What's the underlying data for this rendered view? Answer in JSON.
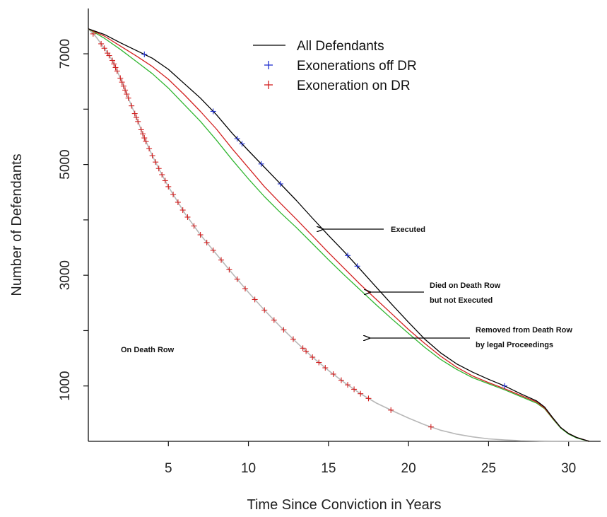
{
  "chart_data": {
    "type": "line",
    "xlabel": "Time Since Conviction in Years",
    "ylabel": "Number of Defendants",
    "xlim": [
      0,
      32
    ],
    "ylim": [
      0,
      7550
    ],
    "x_ticks": [
      5,
      10,
      15,
      20,
      25,
      30
    ],
    "x_tick_labels": [
      "5",
      "10",
      "15",
      "20",
      "25",
      "30"
    ],
    "y_ticks_labeled": [
      1000,
      3000,
      5000,
      7000
    ],
    "y_tick_labels": [
      "1000",
      "3000",
      "5000",
      "7000"
    ],
    "y_ticks_all": [
      1000,
      2000,
      3000,
      4000,
      5000,
      6000,
      7000
    ],
    "grid": false,
    "legend_position": "top-center",
    "legend": [
      {
        "label": "All Defendants",
        "symbol": "line",
        "color": "#000000"
      },
      {
        "label": "Exonerations off DR",
        "symbol": "plus",
        "color": "#1f2fd0"
      },
      {
        "label": "Exoneration on DR",
        "symbol": "plus",
        "color": "#d22020"
      }
    ],
    "series": [
      {
        "name": "Executed",
        "color": "#000000",
        "x": [
          0,
          1,
          2,
          3,
          4,
          5,
          6,
          7,
          8,
          9,
          10,
          11,
          12,
          13,
          14,
          15,
          16,
          17,
          18,
          19,
          20,
          21,
          22,
          23,
          24,
          25,
          26,
          27,
          28,
          28.5,
          29,
          29.5,
          30,
          30.5,
          31,
          31.3
        ],
        "y": [
          7450,
          7350,
          7200,
          7060,
          6920,
          6720,
          6460,
          6200,
          5900,
          5560,
          5250,
          4950,
          4650,
          4350,
          4030,
          3720,
          3420,
          3100,
          2780,
          2460,
          2150,
          1850,
          1600,
          1400,
          1250,
          1120,
          1000,
          860,
          730,
          620,
          430,
          250,
          140,
          70,
          25,
          0
        ]
      },
      {
        "name": "Died on Death Row but not Executed",
        "color": "#d22020",
        "x": [
          0,
          1,
          2,
          3,
          4,
          5,
          6,
          7,
          8,
          9,
          10,
          11,
          12,
          13,
          14,
          15,
          16,
          17,
          18,
          19,
          20,
          21,
          22,
          23,
          24,
          25,
          26,
          27,
          28,
          28.5,
          29,
          29.5,
          30,
          30.5,
          31,
          31.3
        ],
        "y": [
          7450,
          7320,
          7140,
          6960,
          6770,
          6540,
          6260,
          5960,
          5640,
          5280,
          4940,
          4600,
          4300,
          4010,
          3710,
          3410,
          3120,
          2830,
          2560,
          2290,
          2020,
          1770,
          1540,
          1340,
          1180,
          1060,
          950,
          830,
          710,
          600,
          420,
          250,
          140,
          70,
          25,
          0
        ]
      },
      {
        "name": "Removed from Death Row by legal Proceedings",
        "color": "#2fb52f",
        "x": [
          0,
          1,
          2,
          3,
          4,
          5,
          6,
          7,
          8,
          9,
          10,
          11,
          12,
          13,
          14,
          15,
          16,
          17,
          18,
          19,
          20,
          21,
          22,
          23,
          24,
          25,
          26,
          27,
          28,
          28.5,
          29,
          29.5,
          30,
          30.5,
          31,
          31.3
        ],
        "y": [
          7450,
          7280,
          7080,
          6860,
          6640,
          6380,
          6080,
          5780,
          5440,
          5080,
          4740,
          4420,
          4130,
          3860,
          3570,
          3280,
          3000,
          2730,
          2460,
          2200,
          1950,
          1700,
          1480,
          1300,
          1150,
          1040,
          930,
          810,
          690,
          590,
          410,
          240,
          130,
          60,
          20,
          0
        ]
      },
      {
        "name": "On Death Row",
        "color": "#b8b8b8",
        "x": [
          0,
          0.5,
          1,
          1.5,
          2,
          2.5,
          3,
          3.5,
          4,
          4.5,
          5,
          6,
          7,
          8,
          9,
          10,
          11,
          12,
          13,
          14,
          15,
          16,
          17,
          18,
          19,
          20,
          21,
          22,
          23,
          24,
          25,
          26,
          27,
          28,
          29,
          30,
          31,
          31.3
        ],
        "y": [
          7450,
          7300,
          7100,
          6880,
          6560,
          6200,
          5850,
          5480,
          5160,
          4870,
          4600,
          4130,
          3730,
          3380,
          3030,
          2690,
          2370,
          2070,
          1790,
          1520,
          1280,
          1060,
          860,
          690,
          550,
          420,
          300,
          200,
          130,
          80,
          45,
          25,
          12,
          6,
          3,
          1,
          0,
          0
        ]
      }
    ],
    "exonerations_off_dr_x": [
      3.5,
      7.8,
      9.3,
      9.6,
      10.8,
      12.0,
      16.2,
      16.8,
      26.0
    ],
    "exonerations_on_dr_x": [
      0.3,
      0.8,
      1.0,
      1.2,
      1.3,
      1.5,
      1.6,
      1.7,
      1.8,
      2.0,
      2.1,
      2.2,
      2.3,
      2.4,
      2.5,
      2.7,
      2.9,
      3.0,
      3.1,
      3.3,
      3.4,
      3.5,
      3.6,
      3.8,
      4.0,
      4.2,
      4.4,
      4.6,
      4.8,
      5.0,
      5.3,
      5.6,
      5.9,
      6.2,
      6.6,
      7.0,
      7.4,
      7.8,
      8.3,
      8.8,
      9.3,
      9.8,
      10.4,
      11.0,
      11.6,
      12.2,
      12.8,
      13.4,
      13.6,
      14.0,
      14.4,
      14.8,
      15.3,
      15.8,
      16.2,
      16.6,
      17.0,
      17.5,
      18.9,
      21.4
    ],
    "annotations": [
      {
        "text": "Executed",
        "arrow_to_x": 14.4
      },
      {
        "text": "Died on Death Row",
        "text2": "but not Executed",
        "arrow_to_x": 17.4
      },
      {
        "text": "Removed from Death Row",
        "text2": "by legal Proceedings",
        "arrow_to_x": 17.4
      },
      {
        "text": "On Death Row"
      }
    ]
  }
}
